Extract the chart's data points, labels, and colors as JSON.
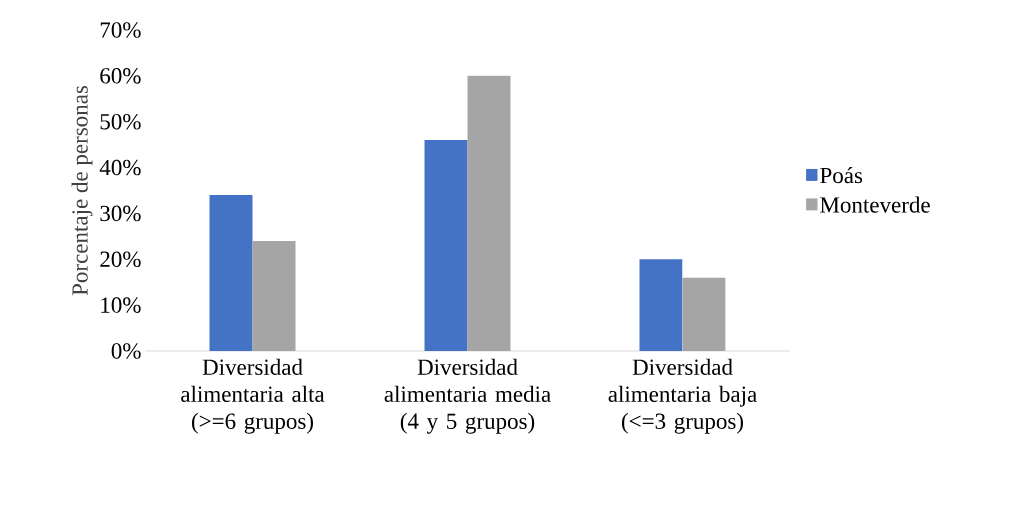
{
  "chart_data": {
    "type": "bar",
    "ylabel": "Porcentaje de personas",
    "categories": [
      "Diversidad alimentaria alta (>=6 grupos)",
      "Diversidad alimentaria media (4 y 5 grupos)",
      "Diversidad alimentaria baja (<=3 grupos)"
    ],
    "series": [
      {
        "name": "Poás",
        "color": "#4472c4",
        "values": [
          34,
          46,
          20
        ]
      },
      {
        "name": "Monteverde",
        "color": "#a5a5a5",
        "values": [
          24,
          60,
          16
        ]
      }
    ],
    "ylim": [
      0,
      70
    ],
    "yticks": [
      {
        "value": 0,
        "label": "0%"
      },
      {
        "value": 10,
        "label": "10%"
      },
      {
        "value": 20,
        "label": "20%"
      },
      {
        "value": 30,
        "label": "30%"
      },
      {
        "value": 40,
        "label": "40%"
      },
      {
        "value": 50,
        "label": "50%"
      },
      {
        "value": 60,
        "label": "60%"
      },
      {
        "value": 70,
        "label": "70%"
      }
    ],
    "legend": "right"
  }
}
